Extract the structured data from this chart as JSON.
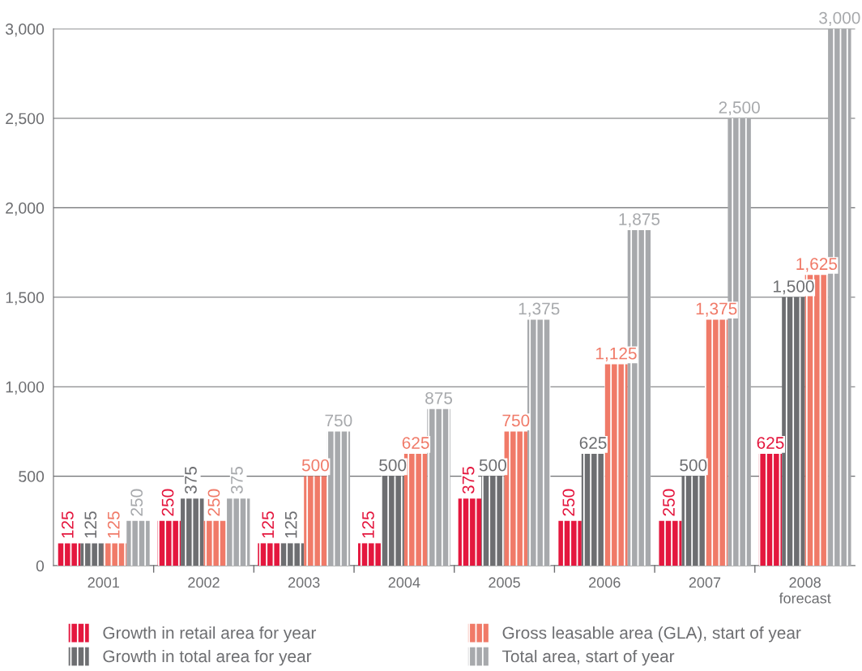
{
  "chart_data": {
    "type": "bar",
    "categories": [
      "2001",
      "2002",
      "2003",
      "2004",
      "2005",
      "2006",
      "2007",
      "2008\nforecast"
    ],
    "series": [
      {
        "name": "Growth in retail area for year",
        "color": "#e4173e",
        "values": [
          125,
          250,
          125,
          125,
          375,
          250,
          250,
          625
        ],
        "value_labels": [
          "125",
          "250",
          "125",
          "125",
          "375",
          "250",
          "250",
          "625"
        ]
      },
      {
        "name": "Growth in total area for year",
        "color": "#6d6e71",
        "values": [
          125,
          375,
          125,
          500,
          500,
          625,
          500,
          1500
        ],
        "value_labels": [
          "125",
          "375",
          "125",
          "500",
          "500",
          "625",
          "500",
          "1,500"
        ]
      },
      {
        "name": "Gross leasable area (GLA), start of year",
        "color": "#f07a68",
        "values": [
          125,
          250,
          500,
          625,
          750,
          1125,
          1375,
          1625
        ],
        "value_labels": [
          "125",
          "250",
          "500",
          "625",
          "750",
          "1,125",
          "1,375",
          "1,625"
        ]
      },
      {
        "name": "Total area, start of year",
        "color": "#a7a9ac",
        "values": [
          250,
          375,
          750,
          875,
          1375,
          1875,
          2500,
          3000
        ],
        "value_labels": [
          "250",
          "375",
          "750",
          "875",
          "1,375",
          "1,875",
          "2,500",
          "3,000"
        ]
      }
    ],
    "ylim": [
      0,
      3000
    ],
    "yticks": [
      0,
      500,
      {
        "value": 1000,
        "label": "1,000"
      },
      {
        "value": 1500,
        "label": "1,500"
      },
      {
        "value": 2000,
        "label": "2,000"
      },
      {
        "value": 2500,
        "label": "2,500"
      },
      {
        "value": 3000,
        "label": "3,000"
      }
    ],
    "grid": "y",
    "legend": "bottom"
  }
}
